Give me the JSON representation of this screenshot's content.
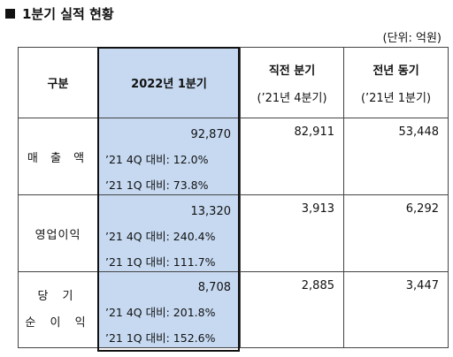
{
  "title": "1분기 실적 현황",
  "unit": "(단위: 억원)",
  "header": {
    "col0": "구분",
    "col1": "2022년 1분기",
    "col2": "직전 분기",
    "col2_sub": "(’21년 4분기)",
    "col3": "전년 동기",
    "col3_sub": "(’21년 1분기)"
  },
  "rows": [
    {
      "label": "매 출 액",
      "current": "92,870",
      "cmp_q4": "’21 4Q 대비: 12.0%",
      "cmp_q1": "’21 1Q 대비: 73.8%",
      "prev_quarter": "82,911",
      "prev_year": "53,448"
    },
    {
      "label": "영업이익",
      "current": "13,320",
      "cmp_q4": "’21 4Q 대비: 240.4%",
      "cmp_q1": "’21 1Q 대비: 111.7%",
      "prev_quarter": "3,913",
      "prev_year": "6,292"
    },
    {
      "label_line1": "당 기",
      "label_line2": "순 이 익",
      "current": "8,708",
      "cmp_q4": "’21 4Q 대비: 201.8%",
      "cmp_q1": "’21 1Q 대비: 152.6%",
      "prev_quarter": "2,885",
      "prev_year": "3,447"
    }
  ],
  "colors": {
    "highlight": "#c6d9f1",
    "border": "#444444"
  }
}
